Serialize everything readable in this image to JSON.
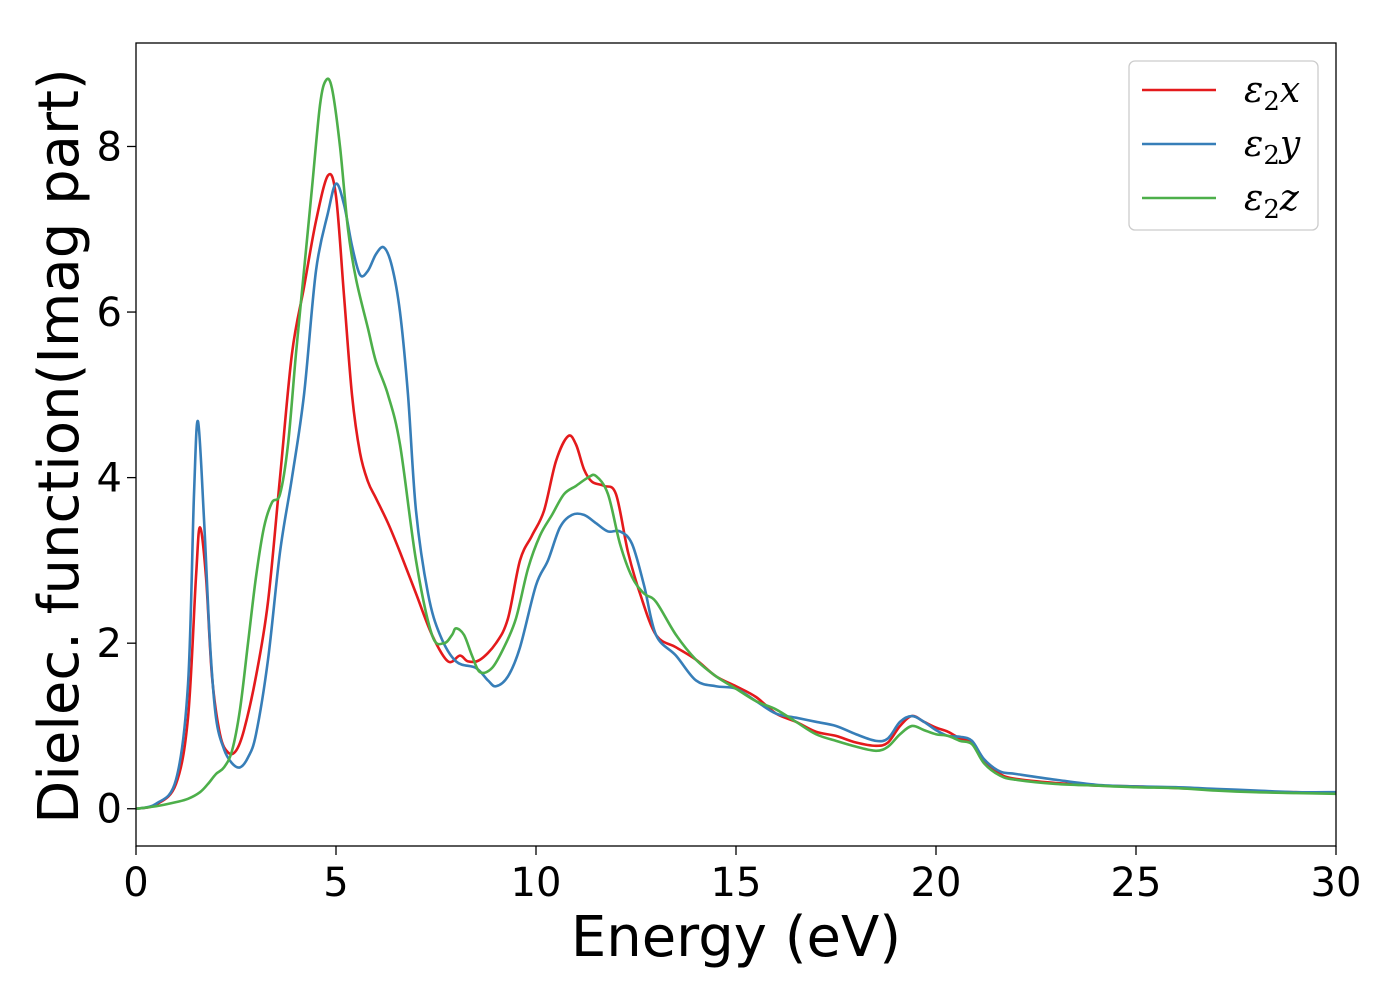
{
  "chart_data": {
    "type": "line",
    "title": "",
    "xlabel": "Energy (eV)",
    "ylabel": "Dielec. function(Imag part)",
    "xlim": [
      0,
      30
    ],
    "ylim": [
      -0.45,
      9.25
    ],
    "xticks": [
      0,
      5,
      10,
      15,
      20,
      25,
      30
    ],
    "yticks": [
      0,
      2,
      4,
      6,
      8
    ],
    "grid": false,
    "legend_position": "top-right",
    "series": [
      {
        "name": "ε₂x",
        "legend_base": "ε",
        "legend_sub": "2",
        "legend_var": "x",
        "color": "#e41a1c",
        "x": [
          0,
          0.5,
          1.0,
          1.3,
          1.5,
          1.6,
          1.75,
          1.9,
          2.1,
          2.3,
          2.5,
          2.7,
          3.0,
          3.3,
          3.6,
          3.9,
          4.2,
          4.5,
          4.8,
          5.0,
          5.2,
          5.4,
          5.6,
          5.8,
          6.0,
          6.3,
          6.6,
          7.0,
          7.4,
          7.8,
          8.1,
          8.3,
          8.6,
          9.0,
          9.3,
          9.6,
          9.9,
          10.2,
          10.5,
          10.8,
          11.0,
          11.2,
          11.4,
          11.7,
          12.0,
          12.3,
          12.6,
          13.0,
          13.5,
          14.0,
          14.5,
          15.0,
          15.5,
          16.0,
          16.5,
          17.0,
          17.5,
          18.0,
          18.5,
          18.8,
          19.1,
          19.4,
          19.7,
          20.0,
          20.3,
          20.6,
          20.9,
          21.2,
          21.6,
          22.0,
          23.0,
          24.0,
          25.0,
          26.0,
          27.0,
          28.0,
          29.0,
          30.0
        ],
        "y": [
          0.0,
          0.05,
          0.3,
          1.1,
          2.8,
          3.4,
          2.8,
          1.6,
          0.9,
          0.68,
          0.7,
          0.95,
          1.6,
          2.5,
          4.0,
          5.5,
          6.3,
          7.1,
          7.65,
          7.4,
          6.2,
          5.0,
          4.3,
          3.95,
          3.75,
          3.45,
          3.1,
          2.6,
          2.1,
          1.78,
          1.85,
          1.78,
          1.8,
          2.0,
          2.3,
          3.0,
          3.3,
          3.6,
          4.2,
          4.5,
          4.4,
          4.1,
          3.95,
          3.9,
          3.8,
          3.1,
          2.6,
          2.1,
          1.95,
          1.8,
          1.6,
          1.48,
          1.35,
          1.15,
          1.05,
          0.93,
          0.88,
          0.8,
          0.76,
          0.8,
          1.0,
          1.12,
          1.05,
          0.98,
          0.93,
          0.85,
          0.8,
          0.58,
          0.42,
          0.36,
          0.31,
          0.28,
          0.27,
          0.25,
          0.23,
          0.21,
          0.2,
          0.19
        ]
      },
      {
        "name": "ε₂y",
        "legend_base": "ε",
        "legend_sub": "2",
        "legend_var": "y",
        "color": "#377eb8",
        "x": [
          0,
          0.5,
          1.0,
          1.3,
          1.45,
          1.55,
          1.7,
          1.85,
          2.0,
          2.2,
          2.4,
          2.6,
          2.8,
          3.0,
          3.3,
          3.6,
          3.9,
          4.2,
          4.5,
          4.8,
          5.0,
          5.2,
          5.4,
          5.6,
          5.8,
          6.0,
          6.2,
          6.4,
          6.6,
          6.8,
          7.0,
          7.3,
          7.6,
          8.0,
          8.5,
          8.8,
          9.0,
          9.3,
          9.6,
          10.0,
          10.3,
          10.6,
          10.9,
          11.2,
          11.5,
          11.8,
          12.1,
          12.4,
          12.7,
          13.0,
          13.5,
          14.0,
          14.5,
          15.0,
          15.5,
          16.0,
          16.5,
          17.0,
          17.5,
          18.0,
          18.5,
          18.8,
          19.1,
          19.4,
          19.7,
          20.0,
          20.3,
          20.6,
          20.9,
          21.2,
          21.6,
          22.0,
          23.0,
          24.0,
          25.0,
          26.0,
          27.0,
          28.0,
          29.0,
          30.0
        ],
        "y": [
          0.0,
          0.06,
          0.35,
          1.5,
          3.8,
          4.68,
          3.5,
          2.0,
          1.1,
          0.72,
          0.55,
          0.5,
          0.62,
          0.9,
          1.8,
          3.1,
          4.0,
          5.0,
          6.5,
          7.2,
          7.55,
          7.3,
          6.8,
          6.45,
          6.5,
          6.7,
          6.78,
          6.55,
          6.0,
          5.0,
          3.6,
          2.6,
          2.1,
          1.78,
          1.7,
          1.55,
          1.48,
          1.6,
          1.95,
          2.7,
          3.0,
          3.4,
          3.55,
          3.55,
          3.45,
          3.35,
          3.35,
          3.2,
          2.7,
          2.1,
          1.85,
          1.55,
          1.48,
          1.45,
          1.3,
          1.15,
          1.1,
          1.05,
          1.0,
          0.9,
          0.82,
          0.85,
          1.05,
          1.12,
          1.05,
          0.95,
          0.88,
          0.87,
          0.82,
          0.6,
          0.45,
          0.42,
          0.35,
          0.29,
          0.27,
          0.26,
          0.24,
          0.22,
          0.2,
          0.2
        ]
      },
      {
        "name": "ε₂z",
        "legend_base": "ε",
        "legend_sub": "2",
        "legend_var": "z",
        "color": "#4daf4a",
        "x": [
          0,
          0.5,
          1.0,
          1.3,
          1.6,
          1.8,
          2.0,
          2.2,
          2.4,
          2.6,
          2.8,
          3.0,
          3.2,
          3.4,
          3.6,
          3.8,
          4.0,
          4.2,
          4.4,
          4.6,
          4.75,
          4.9,
          5.1,
          5.3,
          5.5,
          5.8,
          6.0,
          6.3,
          6.6,
          7.0,
          7.4,
          7.7,
          7.9,
          8.0,
          8.2,
          8.4,
          8.6,
          8.9,
          9.2,
          9.5,
          9.8,
          10.1,
          10.4,
          10.7,
          11.0,
          11.3,
          11.5,
          11.8,
          12.1,
          12.4,
          12.7,
          13.0,
          13.5,
          14.0,
          14.5,
          15.0,
          15.5,
          16.0,
          16.5,
          17.0,
          17.5,
          18.0,
          18.5,
          18.8,
          19.1,
          19.4,
          19.7,
          20.0,
          20.3,
          20.6,
          20.9,
          21.2,
          21.6,
          22.0,
          23.0,
          24.0,
          25.0,
          26.0,
          27.0,
          28.0,
          29.0,
          30.0
        ],
        "y": [
          0.0,
          0.03,
          0.08,
          0.12,
          0.2,
          0.3,
          0.42,
          0.5,
          0.7,
          1.2,
          2.0,
          2.8,
          3.4,
          3.7,
          3.8,
          4.4,
          5.5,
          6.5,
          7.5,
          8.5,
          8.8,
          8.7,
          8.0,
          7.0,
          6.4,
          5.8,
          5.4,
          5.0,
          4.4,
          3.0,
          2.1,
          2.0,
          2.1,
          2.18,
          2.1,
          1.85,
          1.65,
          1.7,
          1.95,
          2.3,
          2.9,
          3.3,
          3.55,
          3.8,
          3.9,
          4.0,
          4.02,
          3.8,
          3.2,
          2.8,
          2.6,
          2.5,
          2.1,
          1.8,
          1.6,
          1.45,
          1.3,
          1.2,
          1.05,
          0.9,
          0.82,
          0.75,
          0.7,
          0.75,
          0.9,
          1.0,
          0.95,
          0.9,
          0.88,
          0.82,
          0.78,
          0.55,
          0.4,
          0.35,
          0.3,
          0.28,
          0.26,
          0.25,
          0.22,
          0.2,
          0.19,
          0.18
        ]
      }
    ]
  }
}
